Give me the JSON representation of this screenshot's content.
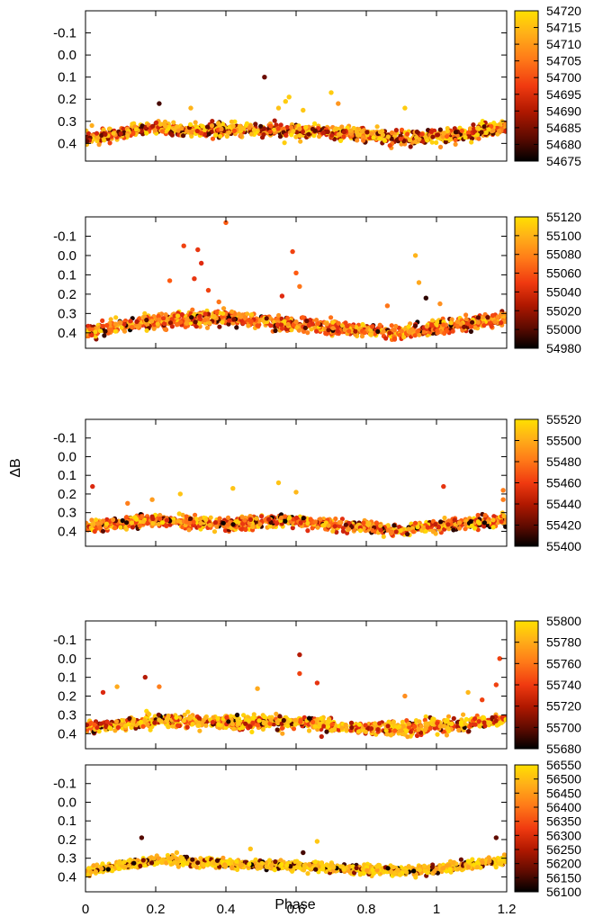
{
  "colors": {
    "colormap": [
      "#000000",
      "#5a0a00",
      "#a01400",
      "#e02a10",
      "#ff5a10",
      "#ff9020",
      "#ffc018",
      "#ffe000"
    ]
  },
  "chart_data": {
    "type": "scatter",
    "xlabel": "Phase",
    "ylabel": "ΔB",
    "xlim": [
      0,
      1.2
    ],
    "ylim": [
      0.48,
      -0.2
    ],
    "y_inverted": true,
    "x_ticks": [
      "0",
      "0.2",
      "0.4",
      "0.6",
      "0.8",
      "1",
      "1.2"
    ],
    "y_ticks": [
      "-0.1",
      "0.0",
      "0.1",
      "0.2",
      "0.3",
      "0.4"
    ],
    "panels": [
      {
        "colorbar": {
          "min": 54675,
          "max": 54720,
          "ticks": [
            "54720",
            "54715",
            "54710",
            "54705",
            "54700",
            "54695",
            "54690",
            "54685",
            "54680",
            "54675"
          ]
        },
        "baseline": [
          [
            0,
            0.38
          ],
          [
            0.2,
            0.33
          ],
          [
            0.4,
            0.34
          ],
          [
            0.6,
            0.34
          ],
          [
            0.8,
            0.36
          ],
          [
            0.9,
            0.38
          ],
          [
            1.0,
            0.37
          ],
          [
            1.2,
            0.33
          ]
        ],
        "scatter": 0.025,
        "points": [
          {
            "x": 0.51,
            "y": 0.1,
            "t": 54683
          },
          {
            "x": 0.55,
            "y": 0.24,
            "t": 54714
          },
          {
            "x": 0.57,
            "y": 0.21,
            "t": 54716
          },
          {
            "x": 0.58,
            "y": 0.19,
            "t": 54716
          },
          {
            "x": 0.7,
            "y": 0.17,
            "t": 54716
          },
          {
            "x": 0.72,
            "y": 0.22,
            "t": 54708
          },
          {
            "x": 0.21,
            "y": 0.22,
            "t": 54680
          },
          {
            "x": 0.91,
            "y": 0.24,
            "t": 54716
          },
          {
            "x": 0.3,
            "y": 0.24,
            "t": 54712
          },
          {
            "x": 0.62,
            "y": 0.25,
            "t": 54715
          }
        ]
      },
      {
        "colorbar": {
          "min": 54980,
          "max": 55120,
          "ticks": [
            "55120",
            "55100",
            "55080",
            "55060",
            "55040",
            "55020",
            "55000",
            "54980"
          ]
        },
        "baseline": [
          [
            0,
            0.39
          ],
          [
            0.2,
            0.34
          ],
          [
            0.4,
            0.32
          ],
          [
            0.6,
            0.36
          ],
          [
            0.8,
            0.39
          ],
          [
            0.9,
            0.4
          ],
          [
            1.0,
            0.37
          ],
          [
            1.2,
            0.33
          ]
        ],
        "scatter": 0.03,
        "points": [
          {
            "x": 0.4,
            "y": -0.17,
            "t": 55060
          },
          {
            "x": 0.28,
            "y": -0.05,
            "t": 55050
          },
          {
            "x": 0.32,
            "y": -0.03,
            "t": 55045
          },
          {
            "x": 0.33,
            "y": 0.04,
            "t": 55040
          },
          {
            "x": 0.59,
            "y": -0.02,
            "t": 55050
          },
          {
            "x": 0.6,
            "y": 0.09,
            "t": 55060
          },
          {
            "x": 0.61,
            "y": 0.16,
            "t": 55070
          },
          {
            "x": 0.94,
            "y": 0.0,
            "t": 55095
          },
          {
            "x": 0.95,
            "y": 0.14,
            "t": 55090
          },
          {
            "x": 0.97,
            "y": 0.22,
            "t": 54990
          },
          {
            "x": 0.24,
            "y": 0.13,
            "t": 55060
          },
          {
            "x": 0.31,
            "y": 0.12,
            "t": 55045
          },
          {
            "x": 0.35,
            "y": 0.18,
            "t": 55050
          },
          {
            "x": 0.56,
            "y": 0.21,
            "t": 55040
          },
          {
            "x": 0.86,
            "y": 0.26,
            "t": 55070
          },
          {
            "x": 0.38,
            "y": 0.24,
            "t": 55070
          },
          {
            "x": 1.01,
            "y": 0.25,
            "t": 55080
          }
        ]
      },
      {
        "colorbar": {
          "min": 55400,
          "max": 55520,
          "ticks": [
            "55520",
            "55500",
            "55480",
            "55460",
            "55440",
            "55420",
            "55400"
          ]
        },
        "baseline": [
          [
            0,
            0.37
          ],
          [
            0.2,
            0.34
          ],
          [
            0.4,
            0.36
          ],
          [
            0.6,
            0.34
          ],
          [
            0.8,
            0.38
          ],
          [
            0.9,
            0.4
          ],
          [
            1.0,
            0.37
          ],
          [
            1.2,
            0.34
          ]
        ],
        "scatter": 0.025,
        "points": [
          {
            "x": 0.02,
            "y": 0.16,
            "t": 55450
          },
          {
            "x": 0.55,
            "y": 0.14,
            "t": 55505
          },
          {
            "x": 0.42,
            "y": 0.17,
            "t": 55505
          },
          {
            "x": 0.27,
            "y": 0.2,
            "t": 55505
          },
          {
            "x": 1.02,
            "y": 0.16,
            "t": 55455
          },
          {
            "x": 0.6,
            "y": 0.19,
            "t": 55500
          },
          {
            "x": 1.19,
            "y": 0.18,
            "t": 55480
          },
          {
            "x": 0.19,
            "y": 0.23,
            "t": 55490
          },
          {
            "x": 1.19,
            "y": 0.23,
            "t": 55480
          },
          {
            "x": 0.12,
            "y": 0.25,
            "t": 55480
          }
        ]
      },
      {
        "colorbar": {
          "min": 55680,
          "max": 55800,
          "ticks": [
            "55800",
            "55780",
            "55760",
            "55740",
            "55720",
            "55700",
            "55680"
          ]
        },
        "baseline": [
          [
            0,
            0.37
          ],
          [
            0.2,
            0.33
          ],
          [
            0.4,
            0.34
          ],
          [
            0.6,
            0.34
          ],
          [
            0.8,
            0.37
          ],
          [
            0.9,
            0.37
          ],
          [
            1.0,
            0.36
          ],
          [
            1.2,
            0.33
          ]
        ],
        "scatter": 0.03,
        "points": [
          {
            "x": 0.61,
            "y": -0.02,
            "t": 55720
          },
          {
            "x": 0.61,
            "y": 0.08,
            "t": 55740
          },
          {
            "x": 1.18,
            "y": 0.0,
            "t": 55740
          },
          {
            "x": 0.17,
            "y": 0.1,
            "t": 55720
          },
          {
            "x": 0.66,
            "y": 0.13,
            "t": 55735
          },
          {
            "x": 0.09,
            "y": 0.15,
            "t": 55775
          },
          {
            "x": 0.49,
            "y": 0.16,
            "t": 55775
          },
          {
            "x": 1.17,
            "y": 0.14,
            "t": 55740
          },
          {
            "x": 0.21,
            "y": 0.15,
            "t": 55760
          },
          {
            "x": 0.05,
            "y": 0.18,
            "t": 55730
          },
          {
            "x": 0.91,
            "y": 0.2,
            "t": 55765
          },
          {
            "x": 1.13,
            "y": 0.22,
            "t": 55740
          },
          {
            "x": 1.09,
            "y": 0.18,
            "t": 55780
          }
        ]
      },
      {
        "colorbar": {
          "min": 56100,
          "max": 56550,
          "ticks": [
            "56550",
            "56500",
            "56450",
            "56400",
            "56350",
            "56300",
            "56250",
            "56200",
            "56150",
            "56100"
          ]
        },
        "baseline": [
          [
            0,
            0.37
          ],
          [
            0.2,
            0.31
          ],
          [
            0.4,
            0.33
          ],
          [
            0.6,
            0.34
          ],
          [
            0.8,
            0.36
          ],
          [
            0.9,
            0.37
          ],
          [
            1.0,
            0.36
          ],
          [
            1.2,
            0.31
          ]
        ],
        "scatter": 0.02,
        "points": [
          {
            "x": 0.16,
            "y": 0.19,
            "t": 56160
          },
          {
            "x": 0.66,
            "y": 0.21,
            "t": 56500
          },
          {
            "x": 0.47,
            "y": 0.25,
            "t": 56490
          },
          {
            "x": 1.17,
            "y": 0.19,
            "t": 56170
          },
          {
            "x": 0.26,
            "y": 0.27,
            "t": 56480
          },
          {
            "x": 0.62,
            "y": 0.27,
            "t": 56150
          }
        ]
      }
    ]
  }
}
